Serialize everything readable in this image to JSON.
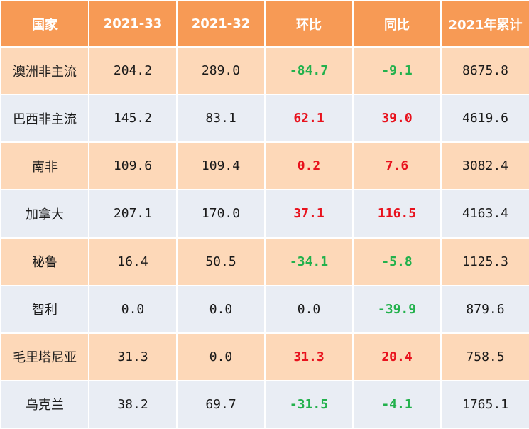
{
  "chart_data": {
    "type": "table",
    "colors": {
      "header_bg": "#f79a55",
      "row_odd_bg": "#fdd8b8",
      "row_even_bg": "#e9edf4",
      "negative": "#22b14c",
      "positive": "#e8121d"
    },
    "columns": [
      "国家",
      "2021-33",
      "2021-32",
      "环比",
      "同比",
      "2021年累计"
    ],
    "rows": [
      {
        "country": "澳洲非主流",
        "w33": "204.2",
        "w32": "289.0",
        "mom": "-84.7",
        "yoy": "-9.1",
        "ytd": "8675.8"
      },
      {
        "country": "巴西非主流",
        "w33": "145.2",
        "w32": "83.1",
        "mom": "62.1",
        "yoy": "39.0",
        "ytd": "4619.6"
      },
      {
        "country": "南非",
        "w33": "109.6",
        "w32": "109.4",
        "mom": "0.2",
        "yoy": "7.6",
        "ytd": "3082.4"
      },
      {
        "country": "加拿大",
        "w33": "207.1",
        "w32": "170.0",
        "mom": "37.1",
        "yoy": "116.5",
        "ytd": "4163.4"
      },
      {
        "country": "秘鲁",
        "w33": "16.4",
        "w32": "50.5",
        "mom": "-34.1",
        "yoy": "-5.8",
        "ytd": "1125.3"
      },
      {
        "country": "智利",
        "w33": "0.0",
        "w32": "0.0",
        "mom": "0.0",
        "yoy": "-39.9",
        "ytd": "879.6"
      },
      {
        "country": "毛里塔尼亚",
        "w33": "31.3",
        "w32": "0.0",
        "mom": "31.3",
        "yoy": "20.4",
        "ytd": "758.5"
      },
      {
        "country": "乌克兰",
        "w33": "38.2",
        "w32": "69.7",
        "mom": "-31.5",
        "yoy": "-4.1",
        "ytd": "1765.1"
      }
    ]
  }
}
